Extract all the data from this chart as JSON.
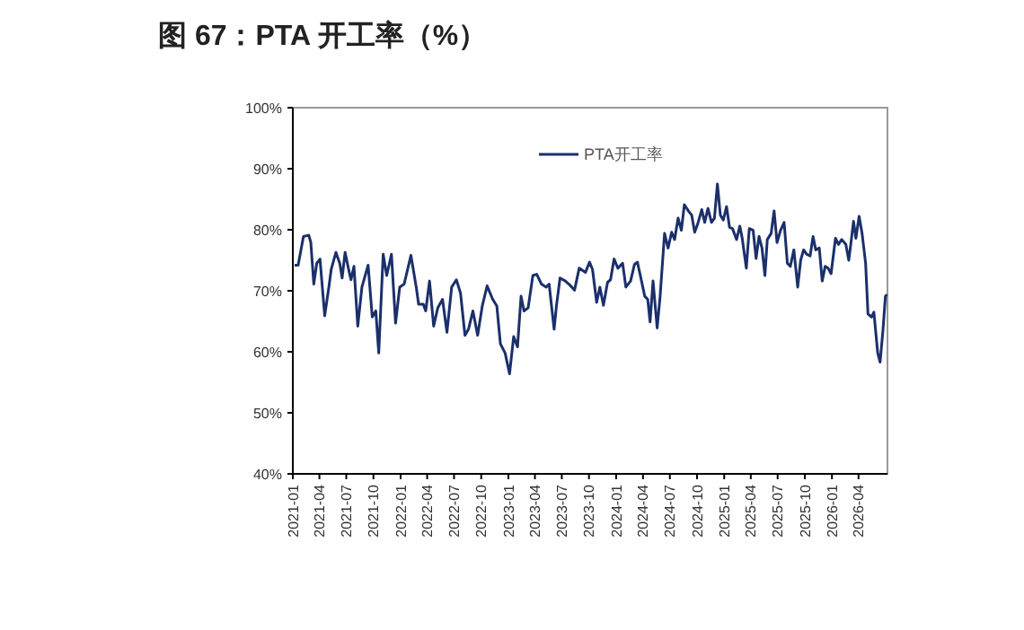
{
  "chart_data": {
    "type": "line",
    "title": "图 67：PTA 开工率（%）",
    "xlim": [
      "2021-01-01",
      "2026-07-08"
    ],
    "xticks": [
      "2021-01",
      "2021-04",
      "2021-07",
      "2021-10",
      "2022-01",
      "2022-04",
      "2022-07",
      "2022-10",
      "2023-01",
      "2023-04",
      "2023-07",
      "2023-10",
      "2024-01",
      "2024-04",
      "2024-07",
      "2024-10",
      "2025-01",
      "2025-04",
      "2025-07",
      "2025-10",
      "2026-01",
      "2026-04"
    ],
    "ylim": [
      40,
      100
    ],
    "yticks": [
      {
        "value": 40,
        "label": "40%"
      },
      {
        "value": 50,
        "label": "50%"
      },
      {
        "value": 60,
        "label": "60%"
      },
      {
        "value": 70,
        "label": "70%"
      },
      {
        "value": 80,
        "label": "80%"
      },
      {
        "value": 90,
        "label": "90%"
      },
      {
        "value": 100,
        "label": "100%"
      }
    ],
    "grid": false,
    "legend": "top right",
    "marker": "none",
    "line_style": "solid",
    "series": [
      {
        "name": "PTA开工率",
        "color": "#1b2f6b",
        "x": [
          "2021-01-07",
          "2021-01-19",
          "2021-02-06",
          "2021-02-24",
          "2021-03-03",
          "2021-03-13",
          "2021-03-23",
          "2021-04-03",
          "2021-04-19",
          "2021-05-03",
          "2021-05-11",
          "2021-05-27",
          "2021-06-09",
          "2021-06-17",
          "2021-06-27",
          "2021-07-09",
          "2021-07-17",
          "2021-07-27",
          "2021-08-09",
          "2021-08-23",
          "2021-09-13",
          "2021-09-27",
          "2021-10-09",
          "2021-10-19",
          "2021-11-03",
          "2021-11-15",
          "2021-12-01",
          "2021-12-15",
          "2021-12-29",
          "2022-01-13",
          "2022-02-05",
          "2022-02-23",
          "2022-03-03",
          "2022-03-19",
          "2022-03-27",
          "2022-04-09",
          "2022-04-23",
          "2022-05-07",
          "2022-05-23",
          "2022-06-07",
          "2022-06-23",
          "2022-07-09",
          "2022-07-23",
          "2022-08-07",
          "2022-08-19",
          "2022-09-03",
          "2022-09-19",
          "2022-10-05",
          "2022-10-21",
          "2022-11-09",
          "2022-11-23",
          "2022-12-05",
          "2022-12-21",
          "2023-01-05",
          "2023-01-19",
          "2023-02-01",
          "2023-02-13",
          "2023-02-23",
          "2023-03-09",
          "2023-03-25",
          "2023-04-07",
          "2023-04-23",
          "2023-05-09",
          "2023-05-19",
          "2023-06-05",
          "2023-06-13",
          "2023-06-25",
          "2023-07-13",
          "2023-07-29",
          "2023-08-13",
          "2023-08-29",
          "2023-09-19",
          "2023-10-03",
          "2023-10-13",
          "2023-10-27",
          "2023-11-07",
          "2023-11-19",
          "2023-12-03",
          "2023-12-13",
          "2023-12-25",
          "2024-01-07",
          "2024-01-23",
          "2024-02-03",
          "2024-02-19",
          "2024-03-03",
          "2024-03-13",
          "2024-03-23",
          "2024-04-07",
          "2024-04-17",
          "2024-04-25",
          "2024-05-05",
          "2024-05-19",
          "2024-05-29",
          "2024-06-13",
          "2024-06-25",
          "2024-07-07",
          "2024-07-17",
          "2024-07-29",
          "2024-08-09",
          "2024-08-19",
          "2024-09-03",
          "2024-09-13",
          "2024-09-23",
          "2024-10-03",
          "2024-10-17",
          "2024-10-27",
          "2024-11-07",
          "2024-11-19",
          "2024-11-29",
          "2024-12-09",
          "2024-12-19",
          "2024-12-29",
          "2025-01-09",
          "2025-01-19",
          "2025-01-29",
          "2025-02-12",
          "2025-02-23",
          "2025-03-03",
          "2025-03-17",
          "2025-03-27",
          "2025-04-09",
          "2025-04-19",
          "2025-04-29",
          "2025-05-09",
          "2025-05-19",
          "2025-05-27",
          "2025-06-09",
          "2025-06-19",
          "2025-06-29",
          "2025-07-11",
          "2025-07-23",
          "2025-08-03",
          "2025-08-13",
          "2025-08-25",
          "2025-09-07",
          "2025-09-17",
          "2025-09-27",
          "2025-10-07",
          "2025-10-19",
          "2025-10-29",
          "2025-11-07",
          "2025-11-19",
          "2025-11-29",
          "2025-12-09",
          "2025-12-19",
          "2025-12-29",
          "2026-01-13",
          "2026-01-23",
          "2026-02-03",
          "2026-02-17",
          "2026-02-27",
          "2026-03-07",
          "2026-03-15",
          "2026-03-23",
          "2026-04-03",
          "2026-04-13",
          "2026-04-25",
          "2026-05-03",
          "2026-05-15",
          "2026-05-23",
          "2026-06-05",
          "2026-06-13",
          "2026-06-23",
          "2026-07-01",
          "2026-07-06"
        ],
        "values": [
          74.2,
          74.2,
          78.9,
          79.1,
          77.9,
          71.1,
          74.5,
          75.2,
          65.9,
          70.6,
          73.5,
          76.3,
          74.5,
          72.1,
          76.3,
          73.5,
          71.8,
          74.0,
          64.2,
          70.6,
          74.2,
          65.7,
          66.7,
          59.8,
          76.0,
          72.5,
          76.0,
          64.7,
          70.6,
          71.1,
          75.8,
          70.6,
          67.8,
          67.8,
          66.7,
          71.6,
          64.2,
          67.2,
          68.6,
          63.2,
          70.6,
          71.8,
          69.6,
          62.7,
          63.7,
          66.7,
          62.7,
          67.6,
          70.8,
          68.6,
          67.5,
          61.3,
          59.8,
          56.4,
          62.5,
          60.8,
          69.1,
          66.7,
          67.2,
          72.5,
          72.7,
          71.1,
          70.6,
          71.1,
          63.7,
          67.6,
          72.1,
          71.6,
          70.9,
          70.1,
          73.7,
          73.0,
          74.7,
          73.5,
          68.1,
          70.6,
          67.6,
          71.4,
          71.8,
          75.2,
          73.7,
          74.5,
          70.6,
          71.6,
          74.3,
          74.7,
          72.5,
          69.1,
          68.6,
          64.9,
          71.6,
          63.9,
          69.1,
          79.4,
          77.0,
          79.6,
          78.4,
          81.9,
          79.9,
          84.1,
          83.0,
          82.4,
          79.6,
          80.9,
          83.3,
          81.2,
          83.5,
          81.2,
          81.9,
          87.5,
          82.4,
          81.6,
          83.8,
          80.4,
          80.2,
          78.4,
          80.6,
          78.6,
          73.7,
          80.2,
          79.9,
          75.3,
          78.9,
          77.0,
          72.5,
          78.4,
          79.4,
          83.1,
          77.9,
          79.9,
          81.2,
          74.5,
          74.0,
          76.7,
          70.6,
          75.0,
          76.7,
          76.0,
          75.7,
          78.9,
          76.7,
          77.0,
          71.6,
          74.0,
          73.7,
          72.8,
          78.6,
          77.6,
          78.4,
          77.6,
          75.0,
          78.1,
          81.4,
          78.6,
          82.2,
          79.4,
          74.5,
          66.2,
          65.7,
          66.5,
          59.8,
          58.3,
          63.7,
          69.1,
          69.4
        ]
      }
    ]
  }
}
